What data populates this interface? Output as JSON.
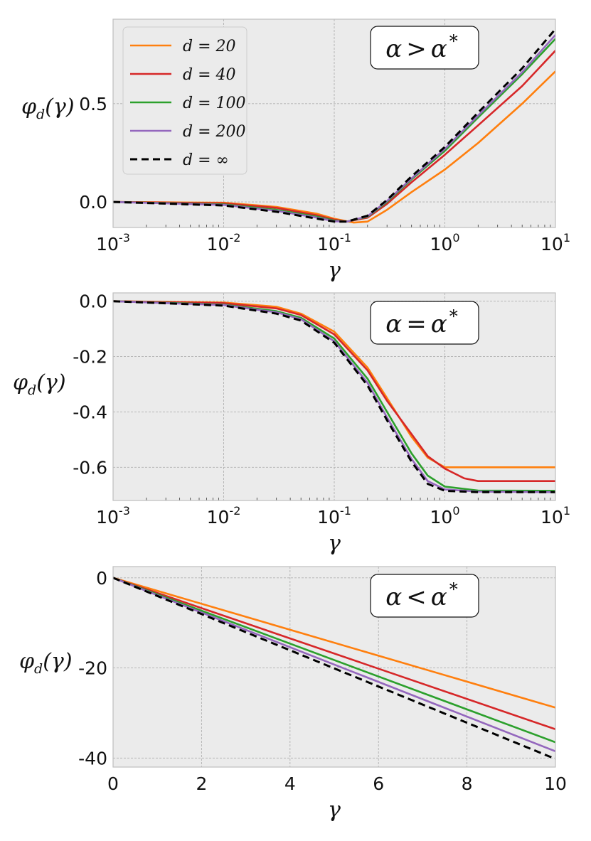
{
  "chart_data": [
    {
      "type": "line",
      "panel": "top",
      "xscale": "log",
      "xlim": [
        0.001,
        10
      ],
      "ylim": [
        -0.13,
        0.93
      ],
      "xlabel": "γ",
      "ylabel": "φ_d(γ)",
      "xticks": [
        {
          "value": 0.001,
          "base": "10",
          "exp": "-3"
        },
        {
          "value": 0.01,
          "base": "10",
          "exp": "-2"
        },
        {
          "value": 0.1,
          "base": "10",
          "exp": "-1"
        },
        {
          "value": 1,
          "base": "10",
          "exp": "0"
        },
        {
          "value": 10,
          "base": "10",
          "exp": "1"
        }
      ],
      "yticks": [
        {
          "value": 0.0,
          "label": "0.0"
        },
        {
          "value": 0.5,
          "label": "0.5"
        }
      ],
      "grid": true,
      "annotation": {
        "lhs": "α",
        "op": ">",
        "rhs": "α",
        "sup": "*"
      },
      "legend": {
        "placement": "upper-left",
        "entries": [
          {
            "text": "d = 20"
          },
          {
            "text": "d = 40"
          },
          {
            "text": "d = 100"
          },
          {
            "text": "d = 200"
          },
          {
            "text": "d = ∞"
          }
        ]
      },
      "series": [
        {
          "legend_index": 0,
          "color": "#ff7f0e",
          "dashed": false,
          "points": [
            [
              0.001,
              0.0
            ],
            [
              0.01,
              -0.004
            ],
            [
              0.03,
              -0.025
            ],
            [
              0.07,
              -0.06
            ],
            [
              0.1,
              -0.085
            ],
            [
              0.15,
              -0.105
            ],
            [
              0.2,
              -0.1
            ],
            [
              0.3,
              -0.04
            ],
            [
              0.5,
              0.05
            ],
            [
              1,
              0.165
            ],
            [
              2,
              0.3
            ],
            [
              5,
              0.5
            ],
            [
              10,
              0.665
            ]
          ]
        },
        {
          "legend_index": 1,
          "color": "#d62728",
          "dashed": false,
          "points": [
            [
              0.001,
              0.0
            ],
            [
              0.01,
              -0.007
            ],
            [
              0.03,
              -0.03
            ],
            [
              0.07,
              -0.068
            ],
            [
              0.1,
              -0.09
            ],
            [
              0.13,
              -0.1
            ],
            [
              0.2,
              -0.08
            ],
            [
              0.3,
              -0.01
            ],
            [
              0.5,
              0.1
            ],
            [
              1,
              0.24
            ],
            [
              2,
              0.39
            ],
            [
              5,
              0.59
            ],
            [
              10,
              0.77
            ]
          ]
        },
        {
          "legend_index": 2,
          "color": "#2ca02c",
          "dashed": false,
          "points": [
            [
              0.001,
              0.0
            ],
            [
              0.01,
              -0.012
            ],
            [
              0.03,
              -0.04
            ],
            [
              0.07,
              -0.075
            ],
            [
              0.1,
              -0.095
            ],
            [
              0.13,
              -0.1
            ],
            [
              0.2,
              -0.075
            ],
            [
              0.3,
              0.0
            ],
            [
              0.5,
              0.115
            ],
            [
              1,
              0.26
            ],
            [
              2,
              0.43
            ],
            [
              5,
              0.65
            ],
            [
              10,
              0.83
            ]
          ]
        },
        {
          "legend_index": 3,
          "color": "#9467bd",
          "dashed": false,
          "points": [
            [
              0.001,
              0.0
            ],
            [
              0.01,
              -0.015
            ],
            [
              0.03,
              -0.045
            ],
            [
              0.07,
              -0.08
            ],
            [
              0.1,
              -0.098
            ],
            [
              0.13,
              -0.1
            ],
            [
              0.2,
              -0.073
            ],
            [
              0.3,
              0.005
            ],
            [
              0.5,
              0.12
            ],
            [
              1,
              0.27
            ],
            [
              2,
              0.44
            ],
            [
              5,
              0.66
            ],
            [
              10,
              0.85
            ]
          ]
        },
        {
          "legend_index": 4,
          "color": "#000000",
          "dashed": true,
          "points": [
            [
              0.001,
              0.0
            ],
            [
              0.01,
              -0.018
            ],
            [
              0.03,
              -0.05
            ],
            [
              0.07,
              -0.085
            ],
            [
              0.1,
              -0.1
            ],
            [
              0.13,
              -0.1
            ],
            [
              0.2,
              -0.07
            ],
            [
              0.3,
              0.01
            ],
            [
              0.5,
              0.13
            ],
            [
              1,
              0.28
            ],
            [
              2,
              0.455
            ],
            [
              5,
              0.68
            ],
            [
              10,
              0.88
            ]
          ]
        }
      ]
    },
    {
      "type": "line",
      "panel": "middle",
      "xscale": "log",
      "xlim": [
        0.001,
        10
      ],
      "ylim": [
        -0.72,
        0.03
      ],
      "xlabel": "γ",
      "ylabel": "φ_d(γ)",
      "xticks": [
        {
          "value": 0.001,
          "base": "10",
          "exp": "-3"
        },
        {
          "value": 0.01,
          "base": "10",
          "exp": "-2"
        },
        {
          "value": 0.1,
          "base": "10",
          "exp": "-1"
        },
        {
          "value": 1,
          "base": "10",
          "exp": "0"
        },
        {
          "value": 10,
          "base": "10",
          "exp": "1"
        }
      ],
      "yticks": [
        {
          "value": 0.0,
          "label": "0.0"
        },
        {
          "value": -0.2,
          "label": "-0.2"
        },
        {
          "value": -0.4,
          "label": "-0.4"
        },
        {
          "value": -0.6,
          "label": "-0.6"
        }
      ],
      "grid": true,
      "annotation": {
        "lhs": "α",
        "op": "=",
        "rhs": "α",
        "sup": "*"
      },
      "series": [
        {
          "legend_index": 0,
          "color": "#ff7f0e",
          "dashed": false,
          "points": [
            [
              0.001,
              0.0
            ],
            [
              0.01,
              -0.005
            ],
            [
              0.03,
              -0.02
            ],
            [
              0.05,
              -0.045
            ],
            [
              0.1,
              -0.11
            ],
            [
              0.2,
              -0.24
            ],
            [
              0.3,
              -0.35
            ],
            [
              0.5,
              -0.49
            ],
            [
              0.7,
              -0.565
            ],
            [
              1,
              -0.6
            ],
            [
              10,
              -0.6
            ]
          ]
        },
        {
          "legend_index": 1,
          "color": "#d62728",
          "dashed": false,
          "points": [
            [
              0.001,
              0.0
            ],
            [
              0.01,
              -0.007
            ],
            [
              0.03,
              -0.026
            ],
            [
              0.05,
              -0.05
            ],
            [
              0.1,
              -0.12
            ],
            [
              0.2,
              -0.25
            ],
            [
              0.3,
              -0.36
            ],
            [
              0.5,
              -0.48
            ],
            [
              0.7,
              -0.56
            ],
            [
              1,
              -0.605
            ],
            [
              1.5,
              -0.64
            ],
            [
              2,
              -0.65
            ],
            [
              10,
              -0.65
            ]
          ]
        },
        {
          "legend_index": 2,
          "color": "#2ca02c",
          "dashed": false,
          "points": [
            [
              0.001,
              0.0
            ],
            [
              0.01,
              -0.012
            ],
            [
              0.03,
              -0.036
            ],
            [
              0.05,
              -0.06
            ],
            [
              0.1,
              -0.135
            ],
            [
              0.2,
              -0.28
            ],
            [
              0.3,
              -0.4
            ],
            [
              0.5,
              -0.55
            ],
            [
              0.7,
              -0.63
            ],
            [
              1,
              -0.67
            ],
            [
              2,
              -0.684
            ],
            [
              10,
              -0.685
            ]
          ]
        },
        {
          "legend_index": 3,
          "color": "#9467bd",
          "dashed": false,
          "points": [
            [
              0.001,
              0.0
            ],
            [
              0.01,
              -0.014
            ],
            [
              0.03,
              -0.04
            ],
            [
              0.05,
              -0.065
            ],
            [
              0.1,
              -0.145
            ],
            [
              0.2,
              -0.295
            ],
            [
              0.3,
              -0.42
            ],
            [
              0.5,
              -0.57
            ],
            [
              0.7,
              -0.65
            ],
            [
              1,
              -0.68
            ],
            [
              2,
              -0.688
            ],
            [
              10,
              -0.69
            ]
          ]
        },
        {
          "legend_index": 4,
          "color": "#000000",
          "dashed": true,
          "points": [
            [
              0.001,
              0.0
            ],
            [
              0.01,
              -0.016
            ],
            [
              0.03,
              -0.045
            ],
            [
              0.05,
              -0.07
            ],
            [
              0.1,
              -0.15
            ],
            [
              0.2,
              -0.305
            ],
            [
              0.3,
              -0.43
            ],
            [
              0.5,
              -0.58
            ],
            [
              0.7,
              -0.66
            ],
            [
              1,
              -0.685
            ],
            [
              2,
              -0.69
            ],
            [
              10,
              -0.69
            ]
          ]
        }
      ]
    },
    {
      "type": "line",
      "panel": "bottom",
      "xscale": "linear",
      "xlim": [
        0,
        10
      ],
      "ylim": [
        -42,
        2.5
      ],
      "xlabel": "γ",
      "ylabel": "φ_d(γ)",
      "xticks": [
        {
          "value": 0,
          "label": "0"
        },
        {
          "value": 2,
          "label": "2"
        },
        {
          "value": 4,
          "label": "4"
        },
        {
          "value": 6,
          "label": "6"
        },
        {
          "value": 8,
          "label": "8"
        },
        {
          "value": 10,
          "label": "10"
        }
      ],
      "yticks": [
        {
          "value": 0,
          "label": "0"
        },
        {
          "value": -20,
          "label": "-20"
        },
        {
          "value": -40,
          "label": "-40"
        }
      ],
      "grid": true,
      "annotation": {
        "lhs": "α",
        "op": "<",
        "rhs": "α",
        "sup": "*"
      },
      "series": [
        {
          "legend_index": 0,
          "color": "#ff7f0e",
          "dashed": false,
          "points": [
            [
              0,
              0
            ],
            [
              10,
              -28.8
            ]
          ]
        },
        {
          "legend_index": 1,
          "color": "#d62728",
          "dashed": false,
          "points": [
            [
              0,
              0
            ],
            [
              10,
              -33.6
            ]
          ]
        },
        {
          "legend_index": 2,
          "color": "#2ca02c",
          "dashed": false,
          "points": [
            [
              0,
              0
            ],
            [
              10,
              -36.5
            ]
          ]
        },
        {
          "legend_index": 3,
          "color": "#9467bd",
          "dashed": false,
          "points": [
            [
              0,
              0
            ],
            [
              10,
              -38.5
            ]
          ]
        },
        {
          "legend_index": 4,
          "color": "#000000",
          "dashed": true,
          "points": [
            [
              0,
              0
            ],
            [
              10,
              -40.2
            ]
          ]
        }
      ]
    }
  ]
}
